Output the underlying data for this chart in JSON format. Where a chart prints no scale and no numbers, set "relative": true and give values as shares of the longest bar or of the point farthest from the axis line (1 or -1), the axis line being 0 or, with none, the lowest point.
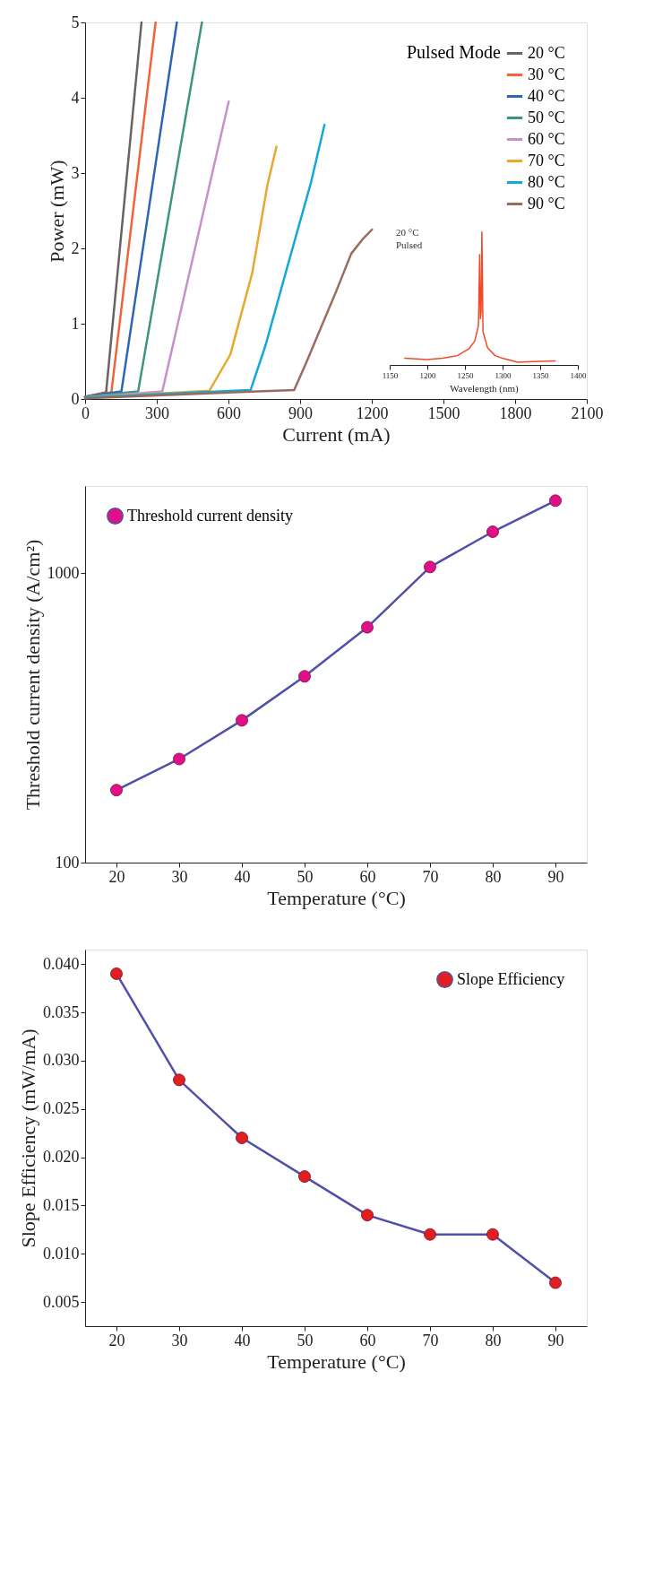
{
  "chart_data": [
    {
      "type": "line",
      "xlabel": "Current (mA)",
      "ylabel": "Power (mW)",
      "legend_title": "Pulsed Mode",
      "legend": "top right",
      "xlim": [
        0,
        2100
      ],
      "xticks": [
        0,
        300,
        600,
        900,
        1200,
        1500,
        1800,
        2100
      ],
      "ylim": [
        0,
        5
      ],
      "yticks": [
        0,
        1,
        2,
        3,
        4,
        5
      ],
      "grid": false,
      "line_style": "solid",
      "marker": "none",
      "series": [
        {
          "name": "20 °C",
          "color": "#6b6360",
          "x": [
            0,
            88,
            236
          ],
          "values": [
            0.03,
            0.09,
            5
          ]
        },
        {
          "name": "30 °C",
          "color": "#f0643c",
          "x": [
            0,
            110,
            295
          ],
          "values": [
            0.03,
            0.09,
            5
          ]
        },
        {
          "name": "40 °C",
          "color": "#2a66b5",
          "x": [
            0,
            152,
            384
          ],
          "values": [
            0.03,
            0.1,
            5
          ]
        },
        {
          "name": "50 °C",
          "color": "#3d9480",
          "x": [
            0,
            222,
            489
          ],
          "values": [
            0.03,
            0.1,
            5
          ]
        },
        {
          "name": "60 °C",
          "color": "#c890c8",
          "x": [
            0,
            323,
            601
          ],
          "values": [
            0.02,
            0.1,
            3.95
          ]
        },
        {
          "name": "70 °C",
          "color": "#e8a830",
          "x": [
            0,
            520,
            608,
            700,
            763,
            801
          ],
          "values": [
            0.02,
            0.11,
            0.59,
            1.68,
            2.84,
            3.35
          ]
        },
        {
          "name": "80 °C",
          "color": "#12a8d8",
          "x": [
            0,
            693,
            756,
            840,
            946,
            1002
          ],
          "values": [
            0.02,
            0.12,
            0.72,
            1.68,
            2.88,
            3.64
          ]
        },
        {
          "name": "90 °C",
          "color": "#9c6a5c",
          "x": [
            0,
            875,
            924,
            1051,
            1114,
            1164,
            1201
          ],
          "values": [
            0.01,
            0.12,
            0.47,
            1.43,
            1.93,
            2.13,
            2.25
          ]
        }
      ]
    },
    {
      "type": "line",
      "relative": true,
      "xlabel": "Wavelength (nm)",
      "xlim": [
        1150,
        1400
      ],
      "xticks": [
        1150,
        1200,
        1250,
        1300,
        1350,
        1400
      ],
      "annotations": [
        "20 °C",
        "Pulsed"
      ],
      "series": [
        {
          "color": "#f04a28",
          "x": [
            1170,
            1200,
            1220,
            1240,
            1255,
            1263,
            1268,
            1269.5,
            1270.5,
            1271.5,
            1272.5,
            1274,
            1280,
            1290,
            1300,
            1320,
            1340,
            1370
          ],
          "values": [
            0.05,
            0.04,
            0.05,
            0.07,
            0.12,
            0.18,
            0.3,
            0.83,
            0.35,
            0.4,
            1.0,
            0.25,
            0.13,
            0.07,
            0.05,
            0.02,
            0.025,
            0.03
          ]
        }
      ]
    },
    {
      "type": "line",
      "xlabel": "Temperature (°C)",
      "ylabel": "Threshold current density (A/cm²)",
      "log": "y",
      "legend": "top left",
      "marker": "circle",
      "xlim": [
        15,
        95
      ],
      "xticks": [
        20,
        30,
        40,
        50,
        60,
        70,
        80,
        90
      ],
      "ylim": [
        100,
        2000
      ],
      "yticks": [
        100,
        1000
      ],
      "grid": false,
      "series": [
        {
          "name": "Threshold current density",
          "color": "#5050a8",
          "colors": [
            "#e0108a",
            "#e0108a",
            "#e0108a",
            "#e0108a",
            "#e0108a",
            "#e0108a",
            "#e0108a",
            "#e0108a"
          ],
          "x": [
            20,
            30,
            40,
            50,
            60,
            70,
            80,
            90
          ],
          "values": [
            178,
            228,
            310,
            440,
            650,
            1050,
            1390,
            1780
          ]
        }
      ]
    },
    {
      "type": "line",
      "xlabel": "Temperature (°C)",
      "ylabel": "Slope Efficiency (mW/mA)",
      "legend": "top right",
      "marker": "circle",
      "xlim": [
        15,
        95
      ],
      "xticks": [
        20,
        30,
        40,
        50,
        60,
        70,
        80,
        90
      ],
      "ylim": [
        0.0025,
        0.0415
      ],
      "yticks": [
        0.005,
        {
          "value": 0.01,
          "label": "0.010"
        },
        0.015,
        {
          "value": 0.02,
          "label": "0.020"
        },
        0.025,
        {
          "value": 0.03,
          "label": "0.030"
        },
        0.035,
        {
          "value": 0.04,
          "label": "0.040"
        }
      ],
      "grid": false,
      "series": [
        {
          "name": "Slope Efficiency",
          "color": "#5050a8",
          "colors": [
            "#e02020",
            "#e02020",
            "#e02020",
            "#e02020",
            "#e02020",
            "#e02020",
            "#e02020",
            "#e02020"
          ],
          "x": [
            20,
            30,
            40,
            50,
            60,
            70,
            80,
            90
          ],
          "values": [
            0.039,
            0.028,
            0.022,
            0.018,
            0.014,
            0.012,
            0.012,
            0.007
          ]
        }
      ]
    }
  ]
}
